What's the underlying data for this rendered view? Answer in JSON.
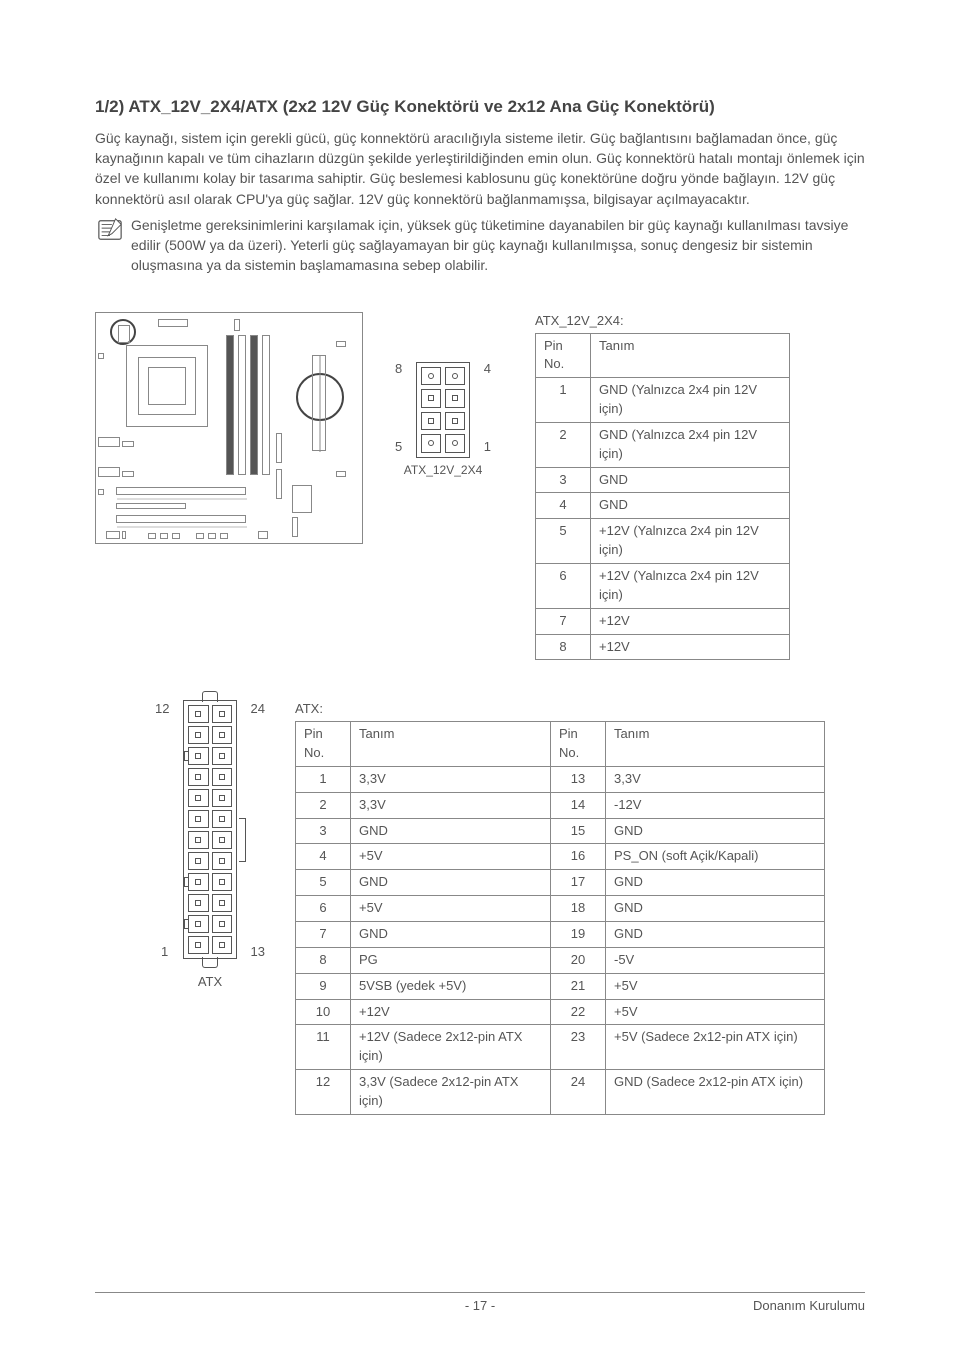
{
  "title": "1/2) ATX_12V_2X4/ATX (2x2 12V Güç Konektörü ve 2x12 Ana Güç Konektörü)",
  "body_paragraph": "Güç kaynağı, sistem için gerekli gücü, güç konnektörü aracılığıyla sisteme iletir. Güç bağlantısını bağlamadan önce, güç kaynağının kapalı ve tüm cihazların düzgün şekilde yerleştirildiğinden emin olun. Güç konnektörü hatalı montajı önlemek için özel ve kullanımı kolay bir tasarıma sahiptir. Güç beslemesi kablosunu güç konektörüne doğru yönde bağlayın. 12V güç konnektörü asıl olarak CPU'ya güç sağlar. 12V güç konnektörü bağlanmamışsa, bilgisayar açılmayacaktır.",
  "note_text": "Genişletme gereksinimlerini karşılamak için, yüksek güç tüketimine dayanabilen bir güç kaynağı kullanılması tavsiye edilir (500W ya da üzeri). Yeterli güç sağlayamayan bir güç kaynağı kullanılmışsa, sonuç dengesiz bir sistemin oluşmasına ya da sistemin başlamamasına sebep olabilir.",
  "conn2x4": {
    "caption": "ATX_12V_2X4",
    "pins": {
      "tl": "8",
      "tr": "4",
      "bl": "5",
      "br": "1"
    }
  },
  "table2x4": {
    "label": "ATX_12V_2X4:",
    "headers": {
      "pin": "Pin No.",
      "def": "Tanım"
    },
    "rows": [
      {
        "pin": "1",
        "def": "GND (Yalnızca 2x4 pin 12V için)"
      },
      {
        "pin": "2",
        "def": "GND (Yalnızca 2x4 pin 12V için)"
      },
      {
        "pin": "3",
        "def": "GND"
      },
      {
        "pin": "4",
        "def": "GND"
      },
      {
        "pin": "5",
        "def": "+12V (Yalnızca 2x4 pin 12V için)"
      },
      {
        "pin": "6",
        "def": "+12V (Yalnızca 2x4 pin 12V için)"
      },
      {
        "pin": "7",
        "def": "+12V"
      },
      {
        "pin": "8",
        "def": "+12V"
      }
    ]
  },
  "conn_atx": {
    "caption": "ATX",
    "pins": {
      "tl": "12",
      "tr": "24",
      "bl": "1",
      "br": "13"
    }
  },
  "table_atx": {
    "label": "ATX:",
    "headers": {
      "pin": "Pin No.",
      "def": "Tanım"
    },
    "rows": [
      {
        "p1": "1",
        "d1": "3,3V",
        "p2": "13",
        "d2": "3,3V"
      },
      {
        "p1": "2",
        "d1": "3,3V",
        "p2": "14",
        "d2": "-12V"
      },
      {
        "p1": "3",
        "d1": "GND",
        "p2": "15",
        "d2": "GND"
      },
      {
        "p1": "4",
        "d1": "+5V",
        "p2": "16",
        "d2": "PS_ON (soft Açik/Kapali)"
      },
      {
        "p1": "5",
        "d1": "GND",
        "p2": "17",
        "d2": "GND"
      },
      {
        "p1": "6",
        "d1": "+5V",
        "p2": "18",
        "d2": "GND"
      },
      {
        "p1": "7",
        "d1": "GND",
        "p2": "19",
        "d2": "GND"
      },
      {
        "p1": "8",
        "d1": "PG",
        "p2": "20",
        "d2": "-5V"
      },
      {
        "p1": "9",
        "d1": "5VSB (yedek +5V)",
        "p2": "21",
        "d2": "+5V"
      },
      {
        "p1": "10",
        "d1": "+12V",
        "p2": "22",
        "d2": "+5V"
      },
      {
        "p1": "11",
        "d1": "+12V (Sadece 2x12-pin ATX için)",
        "p2": "23",
        "d2": "+5V (Sadece 2x12-pin ATX için)"
      },
      {
        "p1": "12",
        "d1": "3,3V (Sadece 2x12-pin ATX için)",
        "p2": "24",
        "d2": "GND (Sadece 2x12-pin ATX için)"
      }
    ]
  },
  "footer": {
    "page": "- 17 -",
    "section": "Donanım Kurulumu"
  }
}
